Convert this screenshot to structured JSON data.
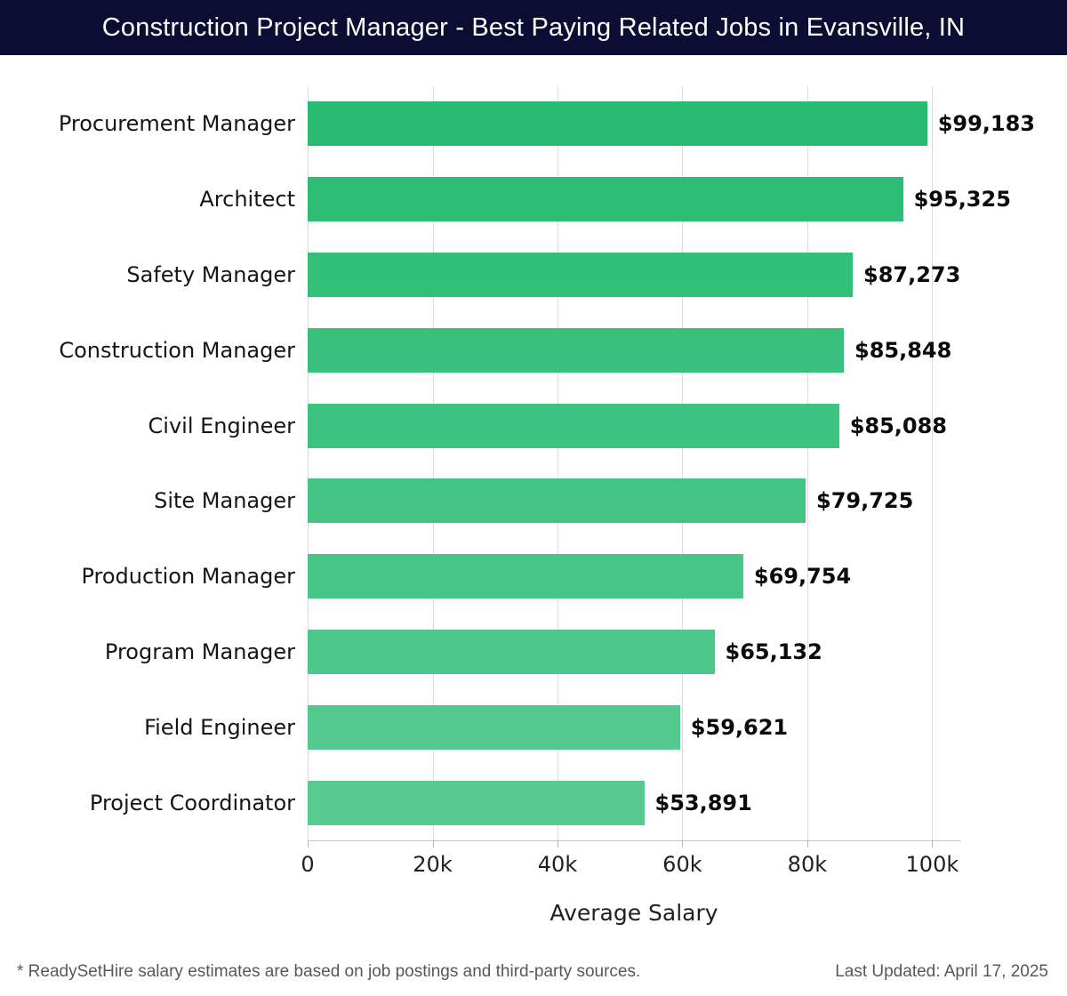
{
  "header": {
    "title": "Construction Project Manager - Best Paying Related Jobs in Evansville, IN",
    "background_color": "#0c0d33",
    "text_color": "#ffffff"
  },
  "chart_data": {
    "type": "bar",
    "orientation": "horizontal",
    "title": "Construction Project Manager - Best Paying Related Jobs in Evansville, IN",
    "categories": [
      "Procurement Manager",
      "Architect",
      "Safety Manager",
      "Construction Manager",
      "Civil Engineer",
      "Site Manager",
      "Production Manager",
      "Program Manager",
      "Field Engineer",
      "Project Coordinator"
    ],
    "values": [
      99183,
      95325,
      87273,
      85848,
      85088,
      79725,
      69754,
      65132,
      59621,
      53891
    ],
    "value_labels": [
      "$99,183",
      "$95,325",
      "$87,273",
      "$85,848",
      "$85,088",
      "$79,725",
      "$69,754",
      "$65,132",
      "$59,621",
      "$53,891"
    ],
    "xlabel": "Average Salary",
    "ylabel": "",
    "xlim": [
      0,
      104500
    ],
    "xticks": [
      {
        "value": 0,
        "label": "0"
      },
      {
        "value": 20000,
        "label": "20k"
      },
      {
        "value": 40000,
        "label": "40k"
      },
      {
        "value": 60000,
        "label": "60k"
      },
      {
        "value": 80000,
        "label": "80k"
      },
      {
        "value": 100000,
        "label": "100k"
      }
    ],
    "grid": true,
    "grid_color": "#dcdcdc",
    "legend": false,
    "bar_colors": [
      "#2abb72",
      "#2fbd75",
      "#34bf79",
      "#39c07c",
      "#3ec280",
      "#44c483",
      "#49c687",
      "#4ec78a",
      "#53c98e",
      "#58cb91"
    ]
  },
  "footer": {
    "note": "* ReadySetHire salary estimates are based on job postings and third-party sources.",
    "last_updated": "Last Updated: April 17, 2025"
  }
}
